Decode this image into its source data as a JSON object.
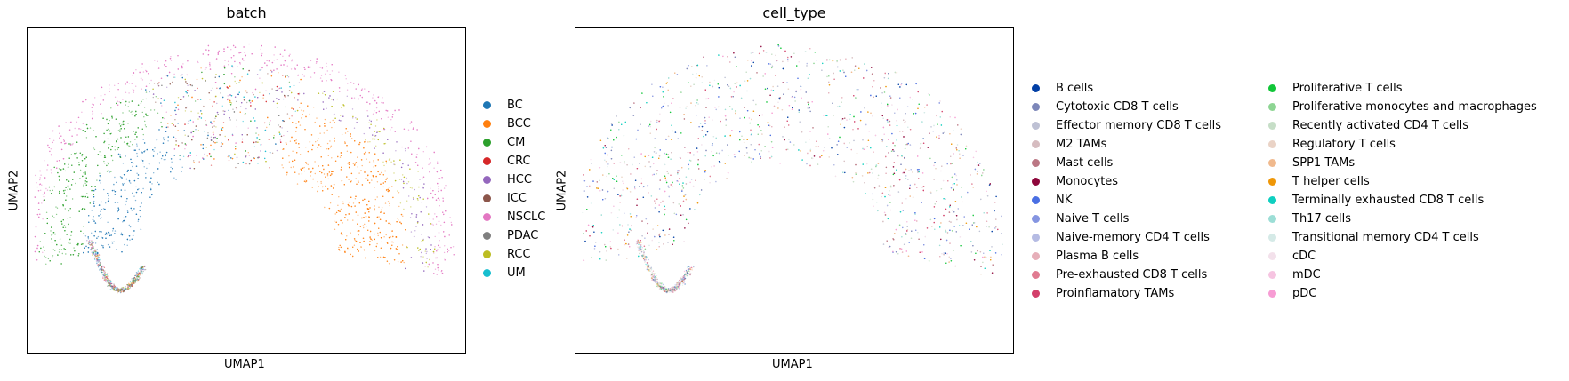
{
  "chart_data": [
    {
      "type": "scatter",
      "title": "batch",
      "xlabel": "UMAP1",
      "ylabel": "UMAP2",
      "grid": false,
      "legend_placement": "right",
      "legend": [
        {
          "label": "BC",
          "color": "#1f77b4"
        },
        {
          "label": "BCC",
          "color": "#ff7f0e"
        },
        {
          "label": "CM",
          "color": "#2ca02c"
        },
        {
          "label": "CRC",
          "color": "#d62728"
        },
        {
          "label": "HCC",
          "color": "#9467bd"
        },
        {
          "label": "ICC",
          "color": "#8c564b"
        },
        {
          "label": "NSCLC",
          "color": "#e377c2"
        },
        {
          "label": "PDAC",
          "color": "#7f7f7f"
        },
        {
          "label": "RCC",
          "color": "#bcbd22"
        },
        {
          "label": "UM",
          "color": "#17becf"
        }
      ]
    },
    {
      "type": "scatter",
      "title": "cell_type",
      "xlabel": "UMAP1",
      "ylabel": "UMAP2",
      "grid": false,
      "legend_placement": "right",
      "legend_columns": 2,
      "legend": [
        {
          "label": "B cells",
          "color": "#023fa5"
        },
        {
          "label": "Cytotoxic CD8 T cells",
          "color": "#7d87b9"
        },
        {
          "label": "Effector memory CD8 T cells",
          "color": "#bec1d4"
        },
        {
          "label": "M2 TAMs",
          "color": "#d6bcc0"
        },
        {
          "label": "Mast cells",
          "color": "#bb7784"
        },
        {
          "label": "Monocytes",
          "color": "#8e063b"
        },
        {
          "label": "NK",
          "color": "#4a6fe3"
        },
        {
          "label": "Naive T cells",
          "color": "#8595e1"
        },
        {
          "label": "Naive-memory CD4 T cells",
          "color": "#b5bbe3"
        },
        {
          "label": "Plasma B cells",
          "color": "#e6afb9"
        },
        {
          "label": "Pre-exhausted CD8 T cells",
          "color": "#e07b91"
        },
        {
          "label": "Proinflamatory TAMs",
          "color": "#d33f6a"
        },
        {
          "label": "Proliferative T cells",
          "color": "#11c638"
        },
        {
          "label": "Proliferative monocytes and macrophages",
          "color": "#8dd593"
        },
        {
          "label": "Recently activated CD4 T cells",
          "color": "#c6dec7"
        },
        {
          "label": "Regulatory T cells",
          "color": "#ead3c6"
        },
        {
          "label": "SPP1 TAMs",
          "color": "#f0b98d"
        },
        {
          "label": "T helper cells",
          "color": "#ef9708"
        },
        {
          "label": "Terminally exhausted CD8 T cells",
          "color": "#0fcfc0"
        },
        {
          "label": "Th17 cells",
          "color": "#9cded6"
        },
        {
          "label": "Transitional memory CD4 T cells",
          "color": "#d5eae7"
        },
        {
          "label": "cDC",
          "color": "#f3e1eb"
        },
        {
          "label": "mDC",
          "color": "#f6c4e1"
        },
        {
          "label": "pDC",
          "color": "#f79cd4"
        }
      ]
    }
  ]
}
